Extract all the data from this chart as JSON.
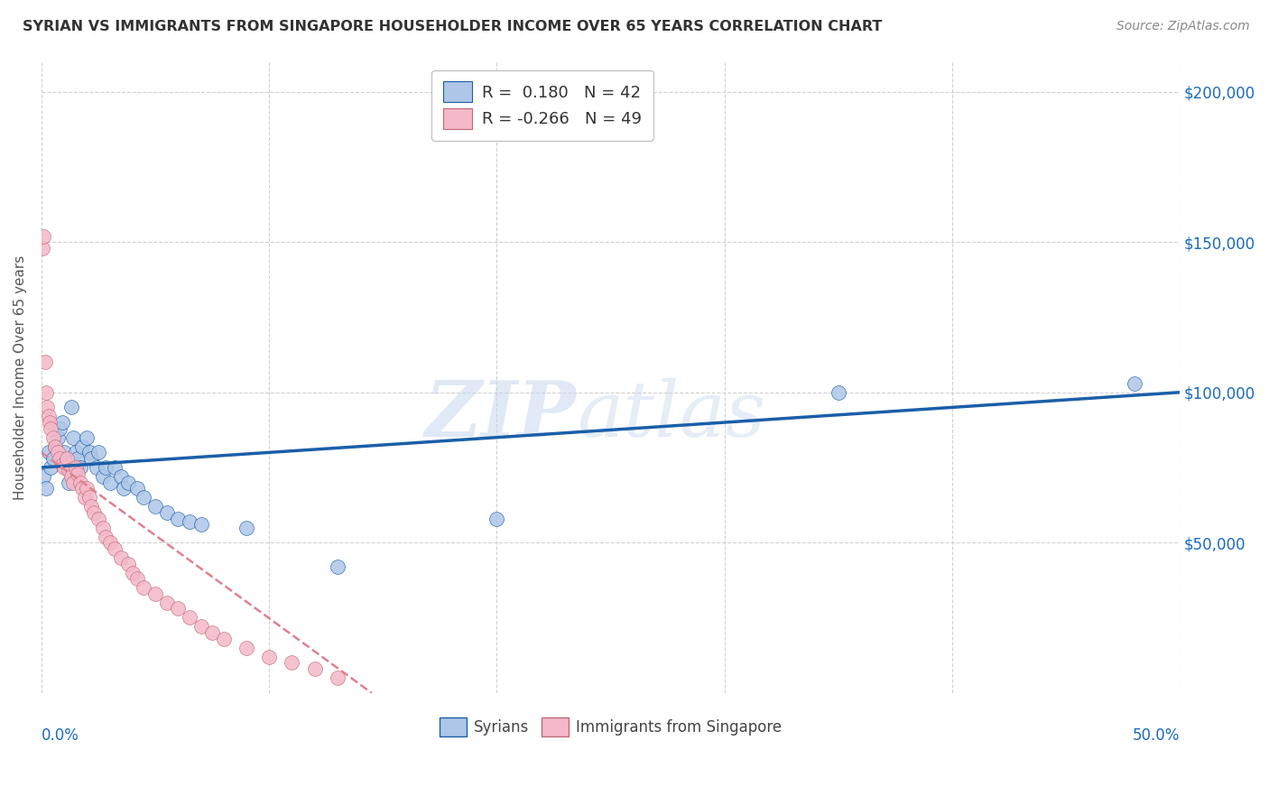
{
  "title": "SYRIAN VS IMMIGRANTS FROM SINGAPORE HOUSEHOLDER INCOME OVER 65 YEARS CORRELATION CHART",
  "source": "Source: ZipAtlas.com",
  "ylabel": "Householder Income Over 65 years",
  "legend_entries": [
    {
      "label": "R =  0.180   N = 42",
      "color": "#aec6e8"
    },
    {
      "label": "R = -0.266   N = 49",
      "color": "#f4b8c8"
    }
  ],
  "bottom_legend": [
    "Syrians",
    "Immigrants from Singapore"
  ],
  "syrians_color": "#aec6e8",
  "singapore_color": "#f4b8c8",
  "trendline_syrians_color": "#1a5fa8",
  "trendline_singapore_color": "#d4a0b0",
  "syrians_x": [
    0.001,
    0.002,
    0.003,
    0.004,
    0.005,
    0.006,
    0.007,
    0.008,
    0.009,
    0.01,
    0.011,
    0.012,
    0.013,
    0.014,
    0.015,
    0.016,
    0.017,
    0.018,
    0.02,
    0.021,
    0.022,
    0.024,
    0.025,
    0.027,
    0.028,
    0.03,
    0.032,
    0.035,
    0.036,
    0.038,
    0.042,
    0.045,
    0.05,
    0.055,
    0.06,
    0.065,
    0.07,
    0.09,
    0.13,
    0.2,
    0.35,
    0.48
  ],
  "syrians_y": [
    72000,
    68000,
    80000,
    75000,
    78000,
    82000,
    85000,
    88000,
    90000,
    80000,
    75000,
    70000,
    95000,
    85000,
    80000,
    78000,
    75000,
    82000,
    85000,
    80000,
    78000,
    75000,
    80000,
    72000,
    75000,
    70000,
    75000,
    72000,
    68000,
    70000,
    68000,
    65000,
    62000,
    60000,
    58000,
    57000,
    56000,
    55000,
    42000,
    58000,
    100000,
    103000
  ],
  "singapore_x": [
    0.0005,
    0.001,
    0.0015,
    0.002,
    0.0025,
    0.003,
    0.0035,
    0.004,
    0.005,
    0.006,
    0.007,
    0.008,
    0.009,
    0.01,
    0.011,
    0.012,
    0.013,
    0.014,
    0.015,
    0.016,
    0.017,
    0.018,
    0.019,
    0.02,
    0.021,
    0.022,
    0.023,
    0.025,
    0.027,
    0.028,
    0.03,
    0.032,
    0.035,
    0.038,
    0.04,
    0.042,
    0.045,
    0.05,
    0.055,
    0.06,
    0.065,
    0.07,
    0.075,
    0.08,
    0.09,
    0.1,
    0.11,
    0.12,
    0.13
  ],
  "singapore_y": [
    148000,
    152000,
    110000,
    100000,
    95000,
    92000,
    90000,
    88000,
    85000,
    82000,
    80000,
    78000,
    76000,
    75000,
    78000,
    74000,
    72000,
    70000,
    75000,
    73000,
    70000,
    68000,
    65000,
    68000,
    65000,
    62000,
    60000,
    58000,
    55000,
    52000,
    50000,
    48000,
    45000,
    43000,
    40000,
    38000,
    35000,
    33000,
    30000,
    28000,
    25000,
    22000,
    20000,
    18000,
    15000,
    12000,
    10000,
    8000,
    5000
  ],
  "xlim": [
    0.0,
    0.5
  ],
  "ylim": [
    0,
    210000
  ],
  "yticks": [
    0,
    50000,
    100000,
    150000,
    200000
  ],
  "right_ytick_labels": [
    "",
    "$50,000",
    "$100,000",
    "$150,000",
    "$200,000"
  ],
  "xticks": [
    0.0,
    0.1,
    0.2,
    0.3,
    0.4,
    0.5
  ],
  "background_color": "#ffffff",
  "grid_color": "#cccccc",
  "title_color": "#333333",
  "axis_label_color": "#1a6abf",
  "source_color": "#888888",
  "trendline_start_x": 0.0,
  "trendline_end_x": 0.5,
  "singapore_trendline_start_x": 0.0,
  "singapore_trendline_end_x": 0.145
}
